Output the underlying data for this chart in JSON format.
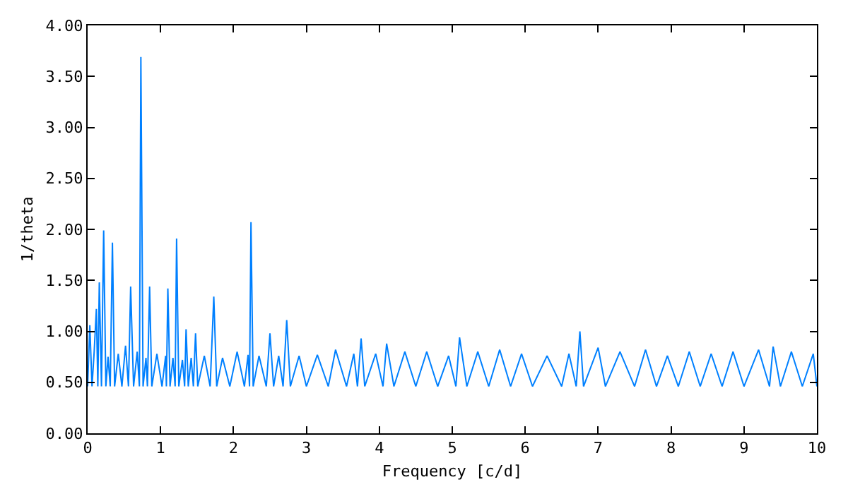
{
  "chart_data": {
    "type": "line",
    "xlabel": "Frequency [c/d]",
    "ylabel": "1/theta",
    "xlim": [
      0,
      10
    ],
    "xticks": [
      0,
      1,
      2,
      3,
      4,
      5,
      6,
      7,
      8,
      9,
      10
    ],
    "ylim": [
      0,
      4
    ],
    "yticks": [
      {
        "value": 0,
        "label": "0.00"
      },
      {
        "value": 0.5,
        "label": "0.50"
      },
      {
        "value": 1,
        "label": "1.00"
      },
      {
        "value": 1.5,
        "label": "1.50"
      },
      {
        "value": 2,
        "label": "2.00"
      },
      {
        "value": 2.5,
        "label": "2.50"
      },
      {
        "value": 3,
        "label": "3.00"
      },
      {
        "value": 3.5,
        "label": "3.50"
      },
      {
        "value": 4,
        "label": "4.00"
      }
    ],
    "x": [
      0.0,
      0.03,
      0.06,
      0.09,
      0.12,
      0.14,
      0.16,
      0.19,
      0.22,
      0.25,
      0.28,
      0.31,
      0.34,
      0.37,
      0.42,
      0.47,
      0.52,
      0.56,
      0.59,
      0.63,
      0.68,
      0.71,
      0.73,
      0.76,
      0.8,
      0.82,
      0.85,
      0.88,
      0.95,
      1.02,
      1.07,
      1.08,
      1.1,
      1.13,
      1.17,
      1.2,
      1.22,
      1.25,
      1.3,
      1.33,
      1.35,
      1.38,
      1.42,
      1.45,
      1.48,
      1.51,
      1.6,
      1.68,
      1.73,
      1.77,
      1.85,
      1.95,
      2.05,
      2.15,
      2.2,
      2.22,
      2.24,
      2.27,
      2.35,
      2.45,
      2.5,
      2.55,
      2.62,
      2.68,
      2.73,
      2.78,
      2.9,
      3.0,
      3.15,
      3.3,
      3.4,
      3.55,
      3.65,
      3.7,
      3.75,
      3.8,
      3.95,
      4.05,
      4.1,
      4.2,
      4.35,
      4.5,
      4.65,
      4.8,
      4.95,
      5.05,
      5.1,
      5.2,
      5.35,
      5.5,
      5.65,
      5.8,
      5.95,
      6.1,
      6.3,
      6.5,
      6.6,
      6.7,
      6.75,
      6.8,
      7.0,
      7.1,
      7.3,
      7.5,
      7.65,
      7.8,
      7.95,
      8.1,
      8.25,
      8.4,
      8.55,
      8.7,
      8.85,
      9.0,
      9.2,
      9.35,
      9.4,
      9.5,
      9.65,
      9.8,
      9.95,
      10.0
    ],
    "series": [
      {
        "color": "#0080ff",
        "values": [
          0.46,
          1.06,
          0.46,
          0.8,
          1.22,
          0.46,
          1.48,
          0.46,
          1.99,
          0.46,
          0.75,
          0.46,
          1.87,
          0.46,
          0.78,
          0.46,
          0.86,
          0.46,
          1.44,
          0.46,
          0.8,
          0.46,
          3.69,
          0.46,
          0.74,
          0.46,
          1.44,
          0.46,
          0.78,
          0.46,
          0.76,
          0.46,
          1.42,
          0.46,
          0.74,
          0.46,
          1.91,
          0.46,
          0.72,
          0.46,
          1.02,
          0.46,
          0.74,
          0.46,
          0.98,
          0.46,
          0.76,
          0.46,
          1.34,
          0.46,
          0.74,
          0.46,
          0.8,
          0.46,
          0.77,
          0.46,
          2.07,
          0.46,
          0.76,
          0.46,
          0.98,
          0.46,
          0.76,
          0.46,
          1.11,
          0.46,
          0.76,
          0.46,
          0.77,
          0.46,
          0.82,
          0.46,
          0.78,
          0.46,
          0.93,
          0.46,
          0.78,
          0.46,
          0.88,
          0.46,
          0.8,
          0.46,
          0.8,
          0.46,
          0.76,
          0.46,
          0.94,
          0.46,
          0.8,
          0.46,
          0.82,
          0.46,
          0.78,
          0.46,
          0.76,
          0.46,
          0.78,
          0.46,
          1.0,
          0.46,
          0.84,
          0.46,
          0.8,
          0.46,
          0.82,
          0.46,
          0.76,
          0.46,
          0.8,
          0.46,
          0.78,
          0.46,
          0.8,
          0.46,
          0.82,
          0.46,
          0.85,
          0.46,
          0.8,
          0.46,
          0.78,
          0.46
        ]
      }
    ]
  }
}
